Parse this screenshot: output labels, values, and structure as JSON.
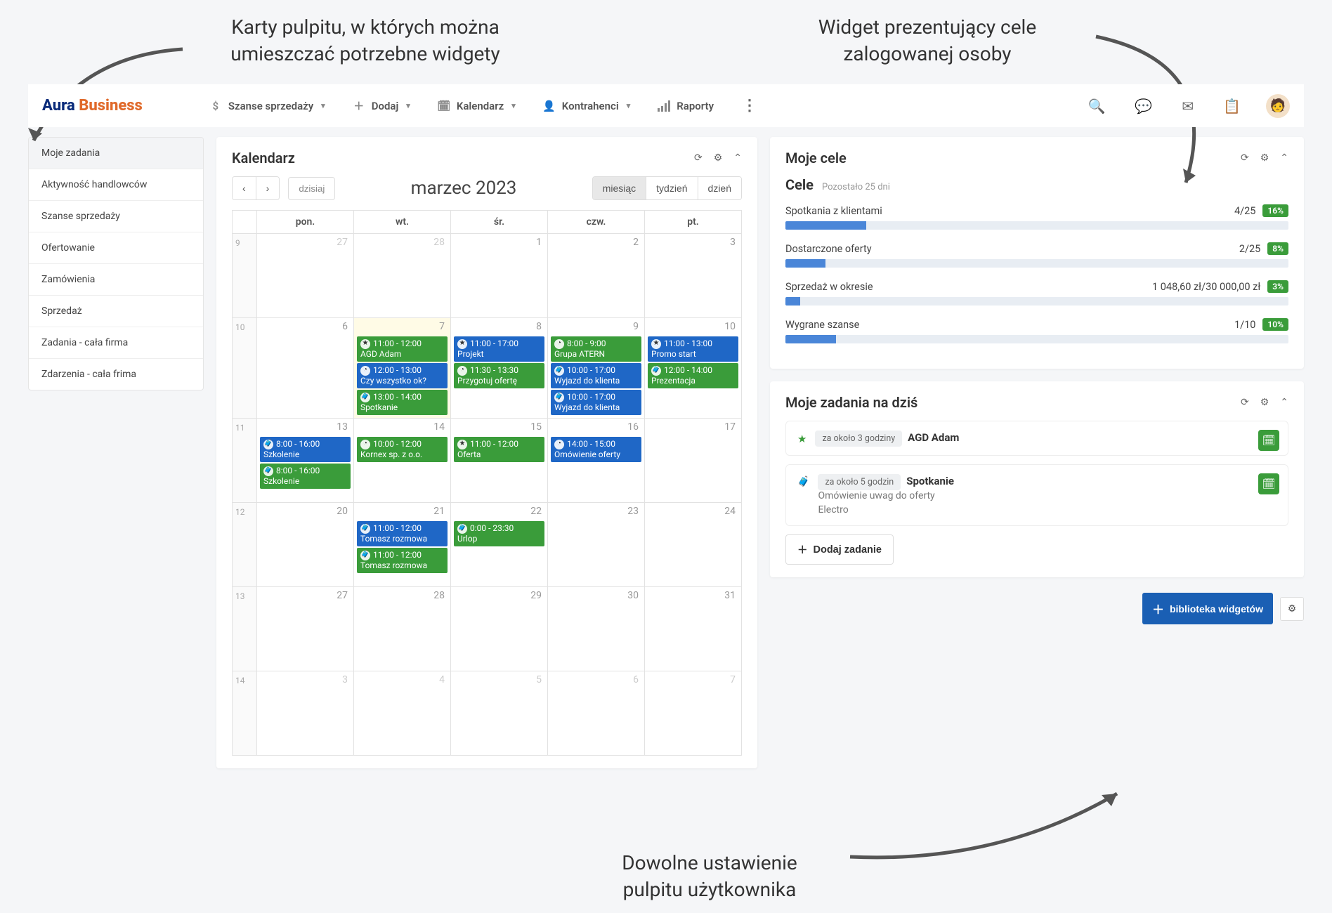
{
  "annotations": {
    "top_left": "Karty pulpitu, w których można\numieszczać potrzebne widgety",
    "top_right": "Widget prezentujący cele\nzalogowanej osoby",
    "bottom": "Dowolne ustawienie\npulpitu użytkownika"
  },
  "logo": {
    "part1": "Aura",
    "part2": "Business"
  },
  "nav": {
    "szanse": "Szanse sprzedaży",
    "dodaj": "Dodaj",
    "kalendarz": "Kalendarz",
    "kontrahenci": "Kontrahenci",
    "raporty": "Raporty"
  },
  "sidebar": {
    "items": [
      "Moje zadania",
      "Aktywność handlowców",
      "Szanse sprzedaży",
      "Ofertowanie",
      "Zamówienia",
      "Sprzedaż",
      "Zadania - cała firma",
      "Zdarzenia - cała frima"
    ],
    "active_index": 0
  },
  "calendar": {
    "title": "Kalendarz",
    "today": "dzisiaj",
    "month_label": "marzec 2023",
    "views": {
      "month": "miesiąc",
      "week": "tydzień",
      "day": "dzień"
    },
    "active_view": "month",
    "daynames": [
      "pon.",
      "wt.",
      "śr.",
      "czw.",
      "pt."
    ],
    "weeks": [
      {
        "num": "9",
        "days": [
          {
            "n": "27",
            "dim": true,
            "events": []
          },
          {
            "n": "28",
            "dim": true,
            "events": []
          },
          {
            "n": "1",
            "events": []
          },
          {
            "n": "2",
            "events": []
          },
          {
            "n": "3",
            "events": []
          }
        ]
      },
      {
        "num": "10",
        "days": [
          {
            "n": "6",
            "events": []
          },
          {
            "n": "7",
            "today": true,
            "events": [
              {
                "c": "green",
                "ic": "star",
                "t": "11:00 - 12:00",
                "s": "AGD Adam"
              },
              {
                "c": "blue",
                "ic": "clock",
                "t": "12:00 - 13:00",
                "s": "Czy wszystko ok?"
              },
              {
                "c": "green",
                "ic": "brief",
                "t": "13:00 - 14:00",
                "s": "Spotkanie"
              }
            ]
          },
          {
            "n": "8",
            "events": [
              {
                "c": "blue",
                "ic": "star",
                "t": "11:00 - 17:00",
                "s": "Projekt"
              },
              {
                "c": "green",
                "ic": "clock",
                "t": "11:30 - 13:30",
                "s": "Przygotuj ofertę"
              }
            ]
          },
          {
            "n": "9",
            "events": [
              {
                "c": "green",
                "ic": "clock",
                "t": "8:00 - 9:00",
                "s": "Grupa ATERN"
              },
              {
                "c": "blue",
                "ic": "brief",
                "t": "10:00 - 17:00",
                "s": "Wyjazd do klienta"
              },
              {
                "c": "blue",
                "ic": "brief",
                "t": "10:00 - 17:00",
                "s": "Wyjazd do klienta"
              }
            ]
          },
          {
            "n": "10",
            "events": [
              {
                "c": "blue",
                "ic": "star",
                "t": "11:00 - 13:00",
                "s": "Promo start"
              },
              {
                "c": "green",
                "ic": "brief",
                "t": "12:00 - 14:00",
                "s": "Prezentacja"
              }
            ]
          }
        ]
      },
      {
        "num": "11",
        "days": [
          {
            "n": "13",
            "events": [
              {
                "c": "blue",
                "ic": "brief",
                "t": "8:00 - 16:00",
                "s": "Szkolenie"
              },
              {
                "c": "green",
                "ic": "brief",
                "t": "8:00 - 16:00",
                "s": "Szkolenie"
              }
            ]
          },
          {
            "n": "14",
            "events": [
              {
                "c": "green",
                "ic": "clock",
                "t": "10:00 - 12:00",
                "s": "Kornex sp. z o.o."
              }
            ]
          },
          {
            "n": "15",
            "events": [
              {
                "c": "green",
                "ic": "star",
                "t": "11:00 - 12:00",
                "s": "Oferta"
              }
            ]
          },
          {
            "n": "16",
            "events": [
              {
                "c": "blue",
                "ic": "clock",
                "t": "14:00 - 15:00",
                "s": "Omówienie oferty"
              }
            ]
          },
          {
            "n": "17",
            "events": []
          }
        ]
      },
      {
        "num": "12",
        "days": [
          {
            "n": "20",
            "events": []
          },
          {
            "n": "21",
            "events": [
              {
                "c": "blue",
                "ic": "brief",
                "t": "11:00 - 12:00",
                "s": "Tomasz rozmowa"
              },
              {
                "c": "green",
                "ic": "brief",
                "t": "11:00 - 12:00",
                "s": "Tomasz rozmowa"
              }
            ]
          },
          {
            "n": "22",
            "events": [
              {
                "c": "green",
                "ic": "brief",
                "t": "0:00 - 23:30",
                "s": "Urlop"
              }
            ]
          },
          {
            "n": "23",
            "events": []
          },
          {
            "n": "24",
            "events": []
          }
        ]
      },
      {
        "num": "13",
        "days": [
          {
            "n": "27",
            "events": []
          },
          {
            "n": "28",
            "events": []
          },
          {
            "n": "29",
            "events": []
          },
          {
            "n": "30",
            "events": []
          },
          {
            "n": "31",
            "events": []
          }
        ]
      },
      {
        "num": "14",
        "days": [
          {
            "n": "3",
            "dim": true,
            "events": []
          },
          {
            "n": "4",
            "dim": true,
            "events": []
          },
          {
            "n": "5",
            "dim": true,
            "events": []
          },
          {
            "n": "6",
            "dim": true,
            "events": []
          },
          {
            "n": "7",
            "dim": true,
            "events": []
          }
        ]
      }
    ]
  },
  "goals": {
    "title": "Moje cele",
    "sub_label": "Cele",
    "remaining": "Pozostało 25 dni",
    "items": [
      {
        "name": "Spotkania z klientami",
        "value": "4/25",
        "pct": 16,
        "badge": "16%"
      },
      {
        "name": "Dostarczone oferty",
        "value": "2/25",
        "pct": 8,
        "badge": "8%"
      },
      {
        "name": "Sprzedaż w okresie",
        "value": "1 048,60 zł/30 000,00 zł",
        "pct": 3,
        "badge": "3%"
      },
      {
        "name": "Wygrane szanse",
        "value": "1/10",
        "pct": 10,
        "badge": "10%"
      }
    ]
  },
  "tasks": {
    "title": "Moje zadania na dziś",
    "add_label": "Dodaj zadanie",
    "items": [
      {
        "icon": "star",
        "pill": "za około 3 godziny",
        "title": "AGD Adam",
        "sub1": "",
        "sub2": ""
      },
      {
        "icon": "brief",
        "pill": "za około 5 godzin",
        "title": "Spotkanie",
        "sub1": "Omówienie uwag do oferty",
        "sub2": "Electro"
      }
    ]
  },
  "library_btn": "biblioteka widgetów",
  "colors": {
    "green": "#3a9c3a",
    "blue": "#1f67c6",
    "bar_fill": "#4a86d8",
    "bar_bg": "#e8edf3",
    "accent": "#1a5fb4"
  }
}
